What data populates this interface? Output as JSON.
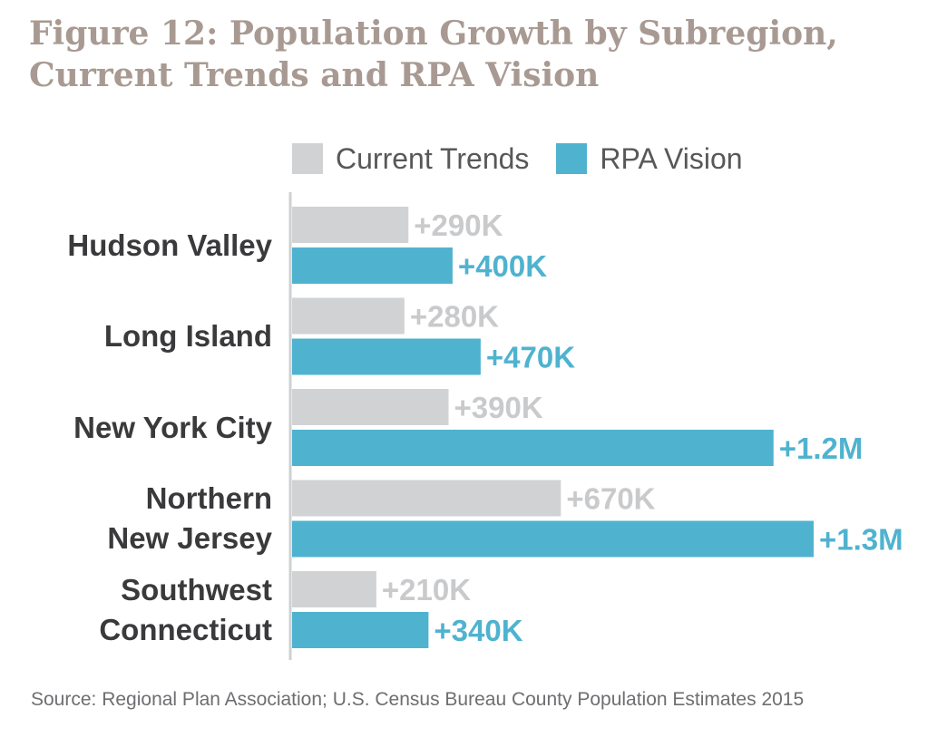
{
  "title_lines": [
    "Figure 12: Population Growth by Subregion,",
    "Current Trends and RPA Vision"
  ],
  "legend": [
    {
      "label": "Current Trends",
      "color": "#d1d2d4"
    },
    {
      "label": "RPA Vision",
      "color": "#4fb3cf"
    }
  ],
  "source": "Source: Regional Plan Association; U.S. Census Bureau County Population Estimates 2015",
  "colors": {
    "current": "#d1d2d4",
    "vision": "#4fb3cf",
    "axis": "#cfd0d2",
    "current_label": "#c9cacc",
    "vision_label": "#4fb3cf"
  },
  "chart_data": {
    "type": "bar",
    "orientation": "horizontal",
    "title": "Figure 12: Population Growth by Subregion, Current Trends and RPA Vision",
    "categories": [
      "Hudson Valley",
      "Long Island",
      "New York City",
      "Northern\nNew Jersey",
      "Southwest\nConnecticut"
    ],
    "series": [
      {
        "name": "Current Trends",
        "values": [
          290000,
          280000,
          390000,
          670000,
          210000
        ],
        "labels": [
          "+290K",
          "+280K",
          "+390K",
          "+670K",
          "+210K"
        ]
      },
      {
        "name": "RPA Vision",
        "values": [
          400000,
          470000,
          1200000,
          1300000,
          340000
        ],
        "labels": [
          "+400K",
          "+470K",
          "+1.2M",
          "+1.3M",
          "+340K"
        ]
      }
    ],
    "xlabel": "",
    "ylabel": "",
    "xlim": [
      0,
      1300000
    ],
    "grid": false,
    "legend_position": "top"
  }
}
